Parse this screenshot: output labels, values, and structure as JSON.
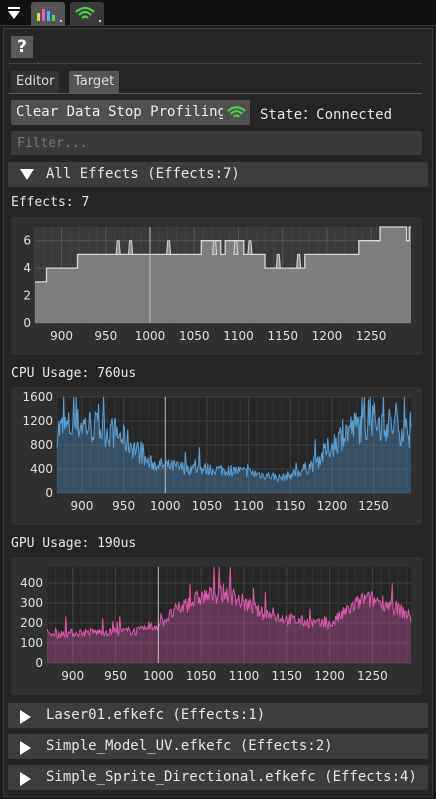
{
  "top_tabs": [
    {
      "name": "profiler-tab",
      "icon": "bar-chart-icon"
    },
    {
      "name": "network-tab",
      "icon": "wifi-icon"
    }
  ],
  "help": {
    "label": "?"
  },
  "tabs": {
    "editor": "Editor",
    "target": "Target"
  },
  "toolbar": {
    "clear_label": "Clear Data",
    "stop_label": "Stop Profiling",
    "state_text": "State：Connected"
  },
  "filter": {
    "placeholder": "Filter...",
    "value": ""
  },
  "all_effects": {
    "label": "All Effects (Effects:7)"
  },
  "effects_label": "Effects: 7",
  "cpu_label": "CPU Usage: 760us",
  "gpu_label": "GPU Usage: 190us",
  "effect_files": [
    {
      "label": "Laser01.efkefc (Effects:1)"
    },
    {
      "label": "Simple_Model_UV.efkefc (Effects:2)"
    },
    {
      "label": "Simple_Sprite_Directional.efkefc (Effects:4)"
    }
  ],
  "colors": {
    "effects_line": "#d8d8d8",
    "effects_fill": "#8a8a8a",
    "cpu": "#5a9fd4",
    "gpu": "#d85aa8"
  },
  "chart_data": [
    {
      "type": "area",
      "series_name": "Effects",
      "xlim": [
        870,
        1295
      ],
      "ylim": [
        0,
        7
      ],
      "xticks": [
        900,
        950,
        1000,
        1050,
        1100,
        1150,
        1200,
        1250
      ],
      "yticks": [
        0,
        2,
        4,
        6
      ],
      "points": [
        [
          870,
          3
        ],
        [
          883,
          3
        ],
        [
          883,
          4
        ],
        [
          918,
          4
        ],
        [
          918,
          5
        ],
        [
          1002,
          5
        ],
        [
          1002,
          5
        ],
        [
          1040,
          5
        ],
        [
          1040,
          5
        ],
        [
          1058,
          5
        ],
        [
          1058,
          6
        ],
        [
          1080,
          6
        ],
        [
          1080,
          5
        ],
        [
          1085,
          5
        ],
        [
          1085,
          6
        ],
        [
          1106,
          6
        ],
        [
          1106,
          5
        ],
        [
          1130,
          5
        ],
        [
          1130,
          4
        ],
        [
          1136,
          4
        ],
        [
          1136,
          4
        ],
        [
          1175,
          4
        ],
        [
          1175,
          5
        ],
        [
          1200,
          5
        ],
        [
          1200,
          5
        ],
        [
          1236,
          5
        ],
        [
          1236,
          6
        ],
        [
          1260,
          6
        ],
        [
          1260,
          7
        ],
        [
          1290,
          7
        ],
        [
          1290,
          6
        ],
        [
          1293,
          6
        ],
        [
          1293,
          7
        ],
        [
          1295,
          7
        ]
      ],
      "spikes": [
        [
          964,
          6
        ],
        [
          978,
          6
        ],
        [
          1021,
          6
        ],
        [
          1073,
          6
        ],
        [
          1097,
          6
        ],
        [
          1113,
          6
        ],
        [
          1145,
          5
        ],
        [
          1168,
          5
        ]
      ]
    },
    {
      "type": "area",
      "series_name": "CPU Usage",
      "unit": "us",
      "xlim": [
        870,
        1295
      ],
      "ylim": [
        0,
        1600
      ],
      "xticks": [
        900,
        950,
        1000,
        1050,
        1100,
        1150,
        1200,
        1250
      ],
      "yticks": [
        0,
        400,
        800,
        1200,
        1600
      ],
      "profile": [
        [
          870,
          1050
        ],
        [
          900,
          1150
        ],
        [
          940,
          1000
        ],
        [
          960,
          800
        ],
        [
          980,
          500
        ],
        [
          1000,
          450
        ],
        [
          1040,
          400
        ],
        [
          1080,
          380
        ],
        [
          1120,
          300
        ],
        [
          1140,
          250
        ],
        [
          1160,
          350
        ],
        [
          1180,
          500
        ],
        [
          1200,
          800
        ],
        [
          1220,
          1050
        ],
        [
          1250,
          1200
        ],
        [
          1280,
          1100
        ],
        [
          1295,
          1000
        ]
      ]
    },
    {
      "type": "area",
      "series_name": "GPU Usage",
      "unit": "us",
      "xlim": [
        870,
        1295
      ],
      "ylim": [
        0,
        480
      ],
      "xticks": [
        900,
        950,
        1000,
        1050,
        1100,
        1150,
        1200,
        1250
      ],
      "yticks": [
        0,
        100,
        200,
        300,
        400
      ],
      "profile": [
        [
          870,
          140
        ],
        [
          900,
          150
        ],
        [
          940,
          155
        ],
        [
          980,
          160
        ],
        [
          1000,
          190
        ],
        [
          1020,
          260
        ],
        [
          1050,
          330
        ],
        [
          1080,
          350
        ],
        [
          1100,
          300
        ],
        [
          1120,
          250
        ],
        [
          1150,
          220
        ],
        [
          1180,
          200
        ],
        [
          1200,
          190
        ],
        [
          1220,
          260
        ],
        [
          1240,
          320
        ],
        [
          1260,
          310
        ],
        [
          1280,
          270
        ],
        [
          1295,
          230
        ]
      ]
    }
  ]
}
